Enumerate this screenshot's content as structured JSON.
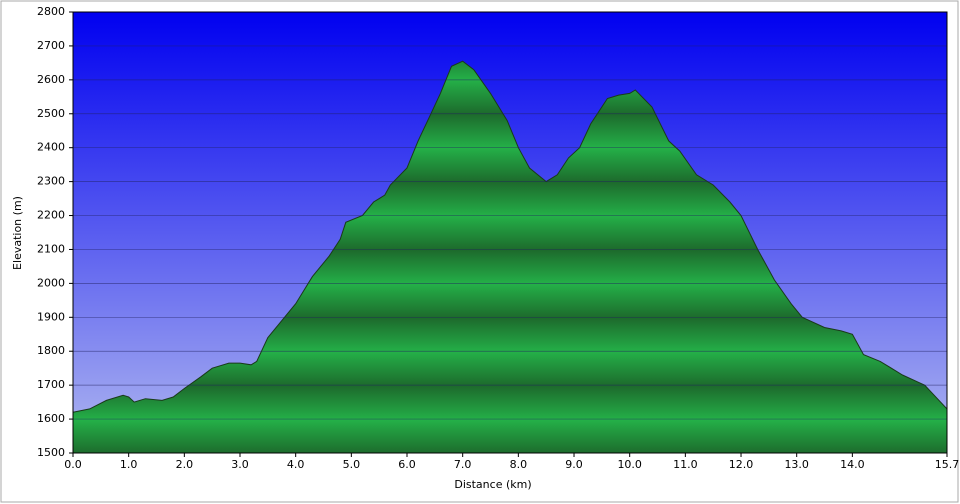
{
  "chart_data": {
    "type": "area",
    "x_label": "Distance  (km)",
    "y_label": "Elevation (m)",
    "x": [
      0,
      0.3,
      0.6,
      0.9,
      1.0,
      1.1,
      1.3,
      1.6,
      1.8,
      2.0,
      2.3,
      2.5,
      2.8,
      3.0,
      3.2,
      3.3,
      3.5,
      3.8,
      4.0,
      4.3,
      4.6,
      4.8,
      4.9,
      5.2,
      5.4,
      5.6,
      5.7,
      6.0,
      6.2,
      6.4,
      6.6,
      6.8,
      7.0,
      7.2,
      7.5,
      7.8,
      8.0,
      8.2,
      8.5,
      8.7,
      8.9,
      9.1,
      9.3,
      9.6,
      9.8,
      10.0,
      10.1,
      10.4,
      10.7,
      10.9,
      11.2,
      11.5,
      11.8,
      12.0,
      12.3,
      12.6,
      12.9,
      13.1,
      13.5,
      13.8,
      14.0,
      14.2,
      14.5,
      14.9,
      15.3,
      15.7
    ],
    "values": [
      1620,
      1630,
      1655,
      1670,
      1665,
      1650,
      1660,
      1655,
      1665,
      1690,
      1725,
      1750,
      1765,
      1765,
      1760,
      1770,
      1840,
      1900,
      1940,
      2020,
      2080,
      2130,
      2180,
      2200,
      2240,
      2260,
      2290,
      2340,
      2420,
      2490,
      2560,
      2640,
      2655,
      2630,
      2560,
      2480,
      2400,
      2340,
      2300,
      2320,
      2370,
      2400,
      2470,
      2545,
      2555,
      2560,
      2570,
      2520,
      2420,
      2390,
      2320,
      2290,
      2240,
      2200,
      2100,
      2010,
      1940,
      1900,
      1870,
      1860,
      1850,
      1790,
      1770,
      1730,
      1700,
      1630
    ],
    "color": "#22a844",
    "xlim": [
      0,
      15.7
    ],
    "ylim": [
      1500,
      2800
    ],
    "xticks": [
      {
        "value": 0,
        "label": "0.0"
      },
      {
        "value": 1,
        "label": "1.0"
      },
      {
        "value": 2,
        "label": "2.0"
      },
      {
        "value": 3,
        "label": "3.0"
      },
      {
        "value": 4,
        "label": "4.0"
      },
      {
        "value": 5,
        "label": "5.0"
      },
      {
        "value": 6,
        "label": "6.0"
      },
      {
        "value": 7,
        "label": "7.0"
      },
      {
        "value": 8,
        "label": "8.0"
      },
      {
        "value": 9,
        "label": "9.0"
      },
      {
        "value": 10,
        "label": "10.0"
      },
      {
        "value": 11,
        "label": "11.0"
      },
      {
        "value": 12,
        "label": "12.0"
      },
      {
        "value": 13,
        "label": "13.0"
      },
      {
        "value": 14,
        "label": "14.0"
      },
      15.7
    ],
    "yticks": [
      1500,
      1600,
      1700,
      1800,
      1900,
      2000,
      2100,
      2200,
      2300,
      2400,
      2500,
      2600,
      2700,
      2800
    ],
    "grid": true
  }
}
